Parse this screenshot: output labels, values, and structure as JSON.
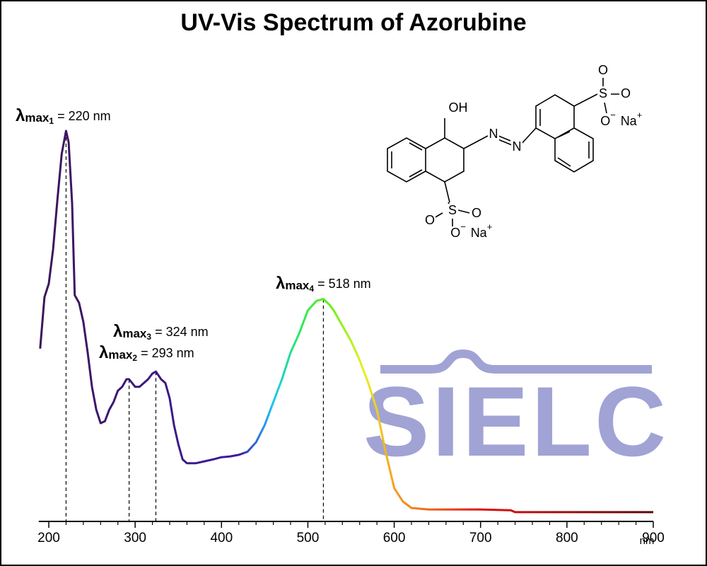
{
  "chart_data": {
    "type": "line",
    "title": "UV-Vis Spectrum of Azorubine",
    "x": [
      190,
      195,
      200,
      205,
      210,
      215,
      220,
      223,
      227,
      230,
      235,
      240,
      245,
      250,
      255,
      260,
      265,
      270,
      275,
      280,
      285,
      290,
      293,
      300,
      305,
      310,
      315,
      320,
      324,
      330,
      335,
      340,
      345,
      350,
      355,
      360,
      370,
      380,
      390,
      400,
      410,
      420,
      430,
      440,
      450,
      460,
      470,
      480,
      490,
      500,
      510,
      518,
      525,
      530,
      540,
      550,
      560,
      570,
      580,
      590,
      600,
      610,
      620,
      640,
      660,
      700,
      735,
      740,
      800,
      900
    ],
    "values": [
      0.43,
      0.565,
      0.6,
      0.69,
      0.82,
      0.94,
      1.0,
      0.97,
      0.81,
      0.57,
      0.55,
      0.5,
      0.42,
      0.33,
      0.27,
      0.235,
      0.24,
      0.27,
      0.29,
      0.32,
      0.33,
      0.35,
      0.35,
      0.33,
      0.33,
      0.34,
      0.35,
      0.365,
      0.37,
      0.35,
      0.34,
      0.3,
      0.23,
      0.18,
      0.14,
      0.13,
      0.13,
      0.135,
      0.14,
      0.146,
      0.148,
      0.152,
      0.16,
      0.185,
      0.23,
      0.29,
      0.35,
      0.42,
      0.47,
      0.53,
      0.555,
      0.56,
      0.545,
      0.53,
      0.49,
      0.45,
      0.4,
      0.34,
      0.27,
      0.16,
      0.065,
      0.03,
      0.013,
      0.009,
      0.009,
      0.009,
      0.007,
      0.002,
      0.002,
      0.002
    ],
    "xlim": [
      190,
      900
    ],
    "ylim": [
      0,
      1
    ],
    "xticks": [
      200,
      300,
      400,
      500,
      600,
      700,
      800,
      900
    ],
    "xminorticks": [
      220,
      240,
      260,
      280,
      320,
      340,
      360,
      380,
      420,
      440,
      460,
      480,
      520,
      540,
      560,
      580,
      620,
      640,
      660,
      680,
      720,
      740,
      760,
      780,
      820,
      840,
      860,
      880
    ],
    "x_unit": "nm",
    "color_stops": [
      {
        "x": 190,
        "color": "#3d1458"
      },
      {
        "x": 420,
        "color": "#3b1ca0"
      },
      {
        "x": 440,
        "color": "#2f6be0"
      },
      {
        "x": 460,
        "color": "#18c8f0"
      },
      {
        "x": 490,
        "color": "#2ee860"
      },
      {
        "x": 520,
        "color": "#56f01a"
      },
      {
        "x": 565,
        "color": "#e8f020"
      },
      {
        "x": 600,
        "color": "#f5a020"
      },
      {
        "x": 700,
        "color": "#e01010"
      },
      {
        "x": 900,
        "color": "#5a0808"
      }
    ],
    "annotations": [
      {
        "symbol": "λ",
        "sub": "max",
        "index": "1",
        "text": "= 220 nm",
        "x": 220
      },
      {
        "symbol": "λ",
        "sub": "max",
        "index": "2",
        "text": "= 293 nm",
        "x": 293
      },
      {
        "symbol": "λ",
        "sub": "max",
        "index": "3",
        "text": "= 324 nm",
        "x": 324
      },
      {
        "symbol": "λ",
        "sub": "max",
        "index": "4",
        "text": "= 518 nm",
        "x": 518
      }
    ],
    "watermark": "SIELC",
    "structure_labels": [
      {
        "text": "OH"
      },
      {
        "text": "N"
      },
      {
        "text": "N"
      },
      {
        "text": "S"
      },
      {
        "text": "O"
      },
      {
        "text": "O"
      },
      {
        "text": "O",
        "sup": "−"
      },
      {
        "text": "Na",
        "sup": "+"
      },
      {
        "text": "S"
      },
      {
        "text": "O"
      },
      {
        "text": "O"
      },
      {
        "text": "O",
        "sup": "−"
      },
      {
        "text": "Na",
        "sup": "+"
      }
    ]
  }
}
